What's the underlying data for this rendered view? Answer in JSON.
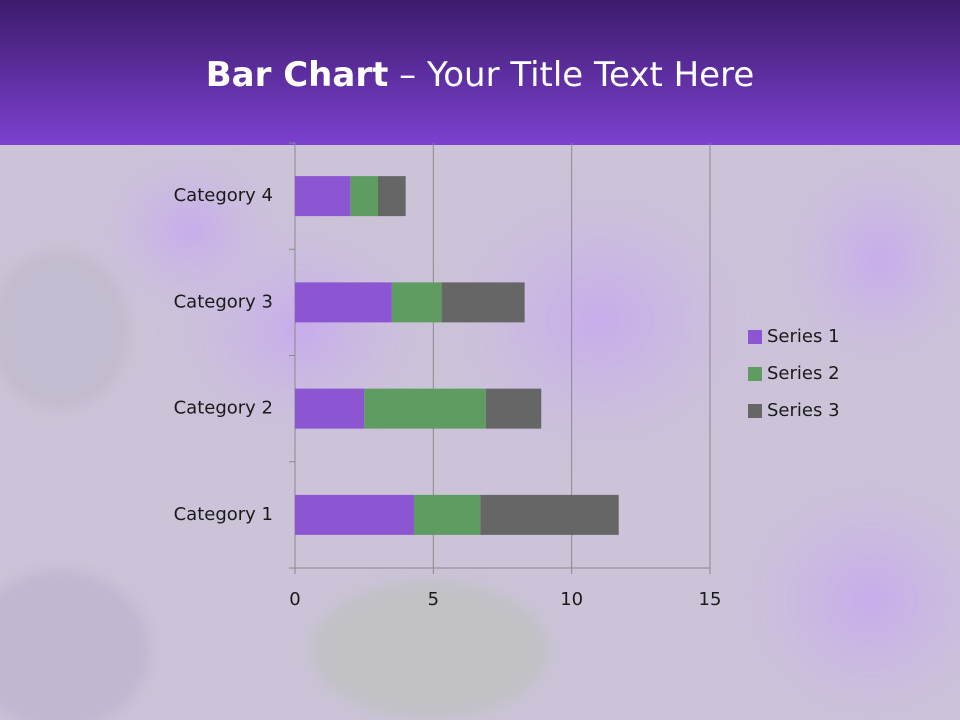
{
  "header": {
    "title_bold": "Bar Chart",
    "title_rest": "– Your Title Text Here"
  },
  "chart_data": {
    "type": "stacked-bar-horizontal",
    "categories": [
      "Category 1",
      "Category 2",
      "Category 3",
      "Category 4"
    ],
    "series": [
      {
        "name": "Series 1",
        "color": "#8c55d2",
        "values": [
          4.3,
          2.5,
          3.5,
          2.0
        ]
      },
      {
        "name": "Series 2",
        "color": "#5f9c62",
        "values": [
          2.4,
          4.4,
          1.8,
          1.0
        ]
      },
      {
        "name": "Series 3",
        "color": "#666666",
        "values": [
          5.0,
          2.0,
          3.0,
          1.0
        ]
      }
    ],
    "xlim": [
      0,
      15
    ],
    "xticks": [
      0,
      5,
      10,
      15
    ],
    "grid": true,
    "legend": "right"
  }
}
